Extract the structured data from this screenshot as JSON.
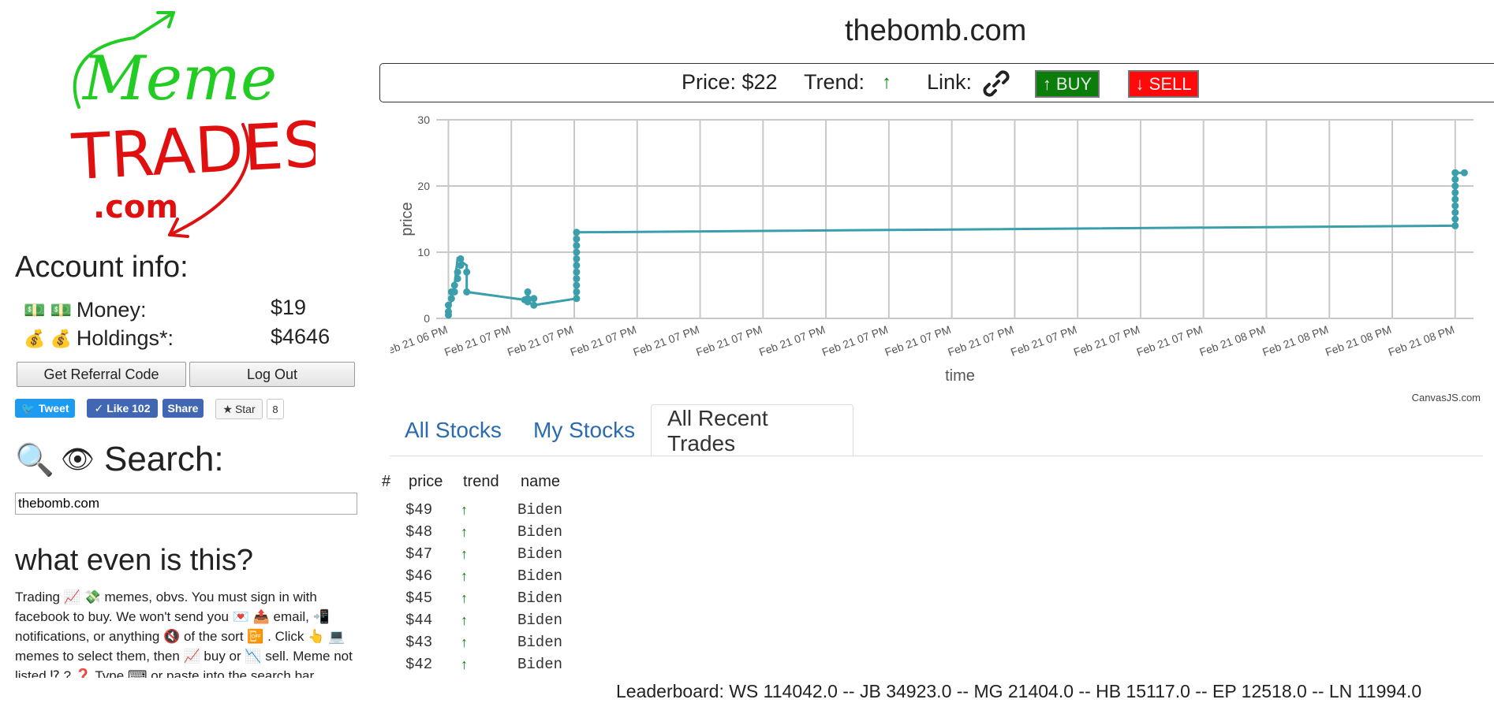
{
  "sidebar": {
    "logo": {
      "line1": "Meme",
      "line2": "TRADES",
      "line3": ".com"
    },
    "account_heading": "Account info:",
    "money_label": "Money:",
    "money_value": "$19",
    "holdings_label": "Holdings*:",
    "holdings_value": "$4646",
    "referral_button": "Get Referral Code",
    "logout_button": "Log Out",
    "tweet_label": "Tweet",
    "like_label": "Like 102",
    "share_label": "Share",
    "star_label": "Star",
    "star_count": "8",
    "search_heading": "Search:",
    "search_value": "thebomb.com",
    "what_heading": "what even is this?",
    "what_text": "Trading 📈 💸 memes, obvs. You must sign in with facebook to buy. We won't send you 💌 📤 email, 📲 notifications, or anything 🔇 of the sort 📴 . Click 👆 💻 memes to select them, then 📈 buy or 📉 sell. Meme not listed ⁉ ? ❓ Type ⌨ or paste into the search bar"
  },
  "main": {
    "title": "thebomb.com",
    "price_text": "Price: $22",
    "trend_label": "Trend:",
    "trend_icon": "↑",
    "link_label": "Link:",
    "buy_label": "↑ BUY",
    "sell_label": "↓ SELL",
    "credit": "CanvasJS.com",
    "tabs": [
      "All Stocks",
      "My Stocks",
      "All Recent Trades"
    ],
    "active_tab": "All Recent Trades",
    "table": {
      "headers": [
        "#",
        "price",
        "trend",
        "name"
      ],
      "rows": [
        {
          "price": "$49",
          "trend": "↑",
          "name": "Biden"
        },
        {
          "price": "$48",
          "trend": "↑",
          "name": "Biden"
        },
        {
          "price": "$47",
          "trend": "↑",
          "name": "Biden"
        },
        {
          "price": "$46",
          "trend": "↑",
          "name": "Biden"
        },
        {
          "price": "$45",
          "trend": "↑",
          "name": "Biden"
        },
        {
          "price": "$44",
          "trend": "↑",
          "name": "Biden"
        },
        {
          "price": "$43",
          "trend": "↑",
          "name": "Biden"
        },
        {
          "price": "$42",
          "trend": "↑",
          "name": "Biden"
        }
      ]
    },
    "leaderboard": "Leaderboard: WS 114042.0 -- JB 34923.0 -- MG 21404.0 -- HB 15117.0 -- EP 12518.0 -- LN 11994.0"
  },
  "colors": {
    "line": "#3a9eab",
    "buy": "#0a7d0a",
    "sell": "#ff0a0a",
    "link": "#2a6bb0"
  },
  "chart_data": {
    "type": "line",
    "xlabel": "time",
    "ylabel": "price",
    "ylim": [
      0,
      30
    ],
    "yticks": [
      0,
      10,
      20,
      30
    ],
    "xticks": [
      "Feb 21 06 PM",
      "Feb 21 07 PM",
      "Feb 21 07 PM",
      "Feb 21 07 PM",
      "Feb 21 07 PM",
      "Feb 21 07 PM",
      "Feb 21 07 PM",
      "Feb 21 07 PM",
      "Feb 21 07 PM",
      "Feb 21 07 PM",
      "Feb 21 07 PM",
      "Feb 21 07 PM",
      "Feb 21 07 PM",
      "Feb 21 08 PM",
      "Feb 21 08 PM",
      "Feb 21 08 PM",
      "Feb 21 08 PM"
    ],
    "grid": true,
    "series": [
      {
        "x": [
          0,
          0,
          0,
          0.05,
          0.05,
          0.1,
          0.1,
          0.15,
          0.15,
          0.2,
          0.2,
          0.3,
          0.3,
          1.25,
          1.3,
          1.3,
          1.3,
          1.4,
          1.4,
          2.1,
          2.1,
          2.1,
          2.1,
          2.1,
          2.1,
          2.1,
          2.1,
          2.1,
          2.1,
          2.1,
          16.5,
          16.5,
          16.5,
          16.5,
          16.5,
          16.5,
          16.5,
          16.5,
          16.5,
          16.5,
          16.65
        ],
        "y": [
          0.5,
          1,
          2,
          3,
          4,
          4,
          5,
          6,
          7,
          9,
          8,
          7,
          4,
          2.8,
          2.5,
          3,
          4,
          3,
          2,
          3,
          4,
          5,
          6,
          7,
          8,
          9,
          10,
          11,
          12,
          13,
          14,
          15,
          16,
          17,
          18,
          19,
          20,
          21,
          22,
          22,
          22
        ],
        "line": [
          [
            0,
            0.5
          ],
          [
            0.05,
            3
          ],
          [
            0.1,
            5
          ],
          [
            0.15,
            9
          ],
          [
            0.3,
            8
          ],
          [
            0.3,
            4
          ],
          [
            1.25,
            2.8
          ],
          [
            1.4,
            2
          ],
          [
            2.1,
            3
          ],
          [
            2.1,
            13
          ],
          [
            16.5,
            14
          ],
          [
            16.5,
            22
          ],
          [
            16.65,
            22
          ]
        ]
      }
    ]
  }
}
